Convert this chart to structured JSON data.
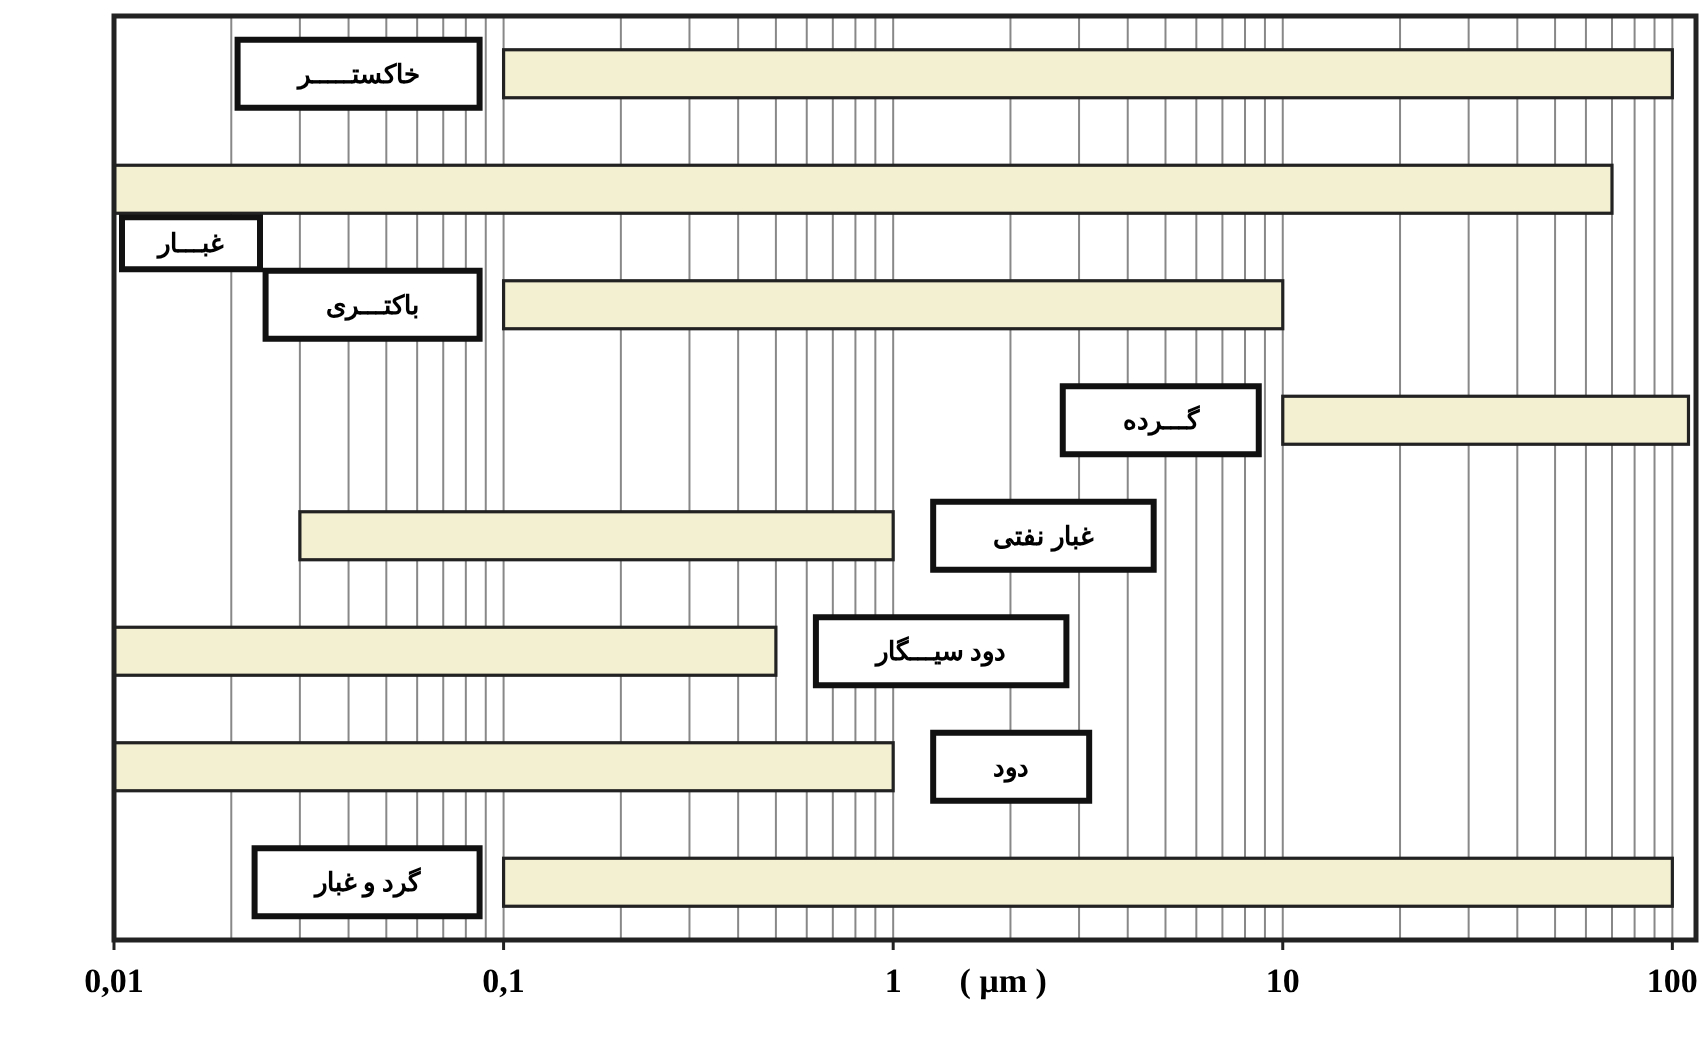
{
  "chart_data": {
    "type": "bar",
    "orientation": "horizontal",
    "log": "x",
    "categories": [
      "خاکستـــــر",
      "غبـــار",
      "باکتـــری",
      "گـــرده",
      "غبار نفتی",
      "دود سیـــگار",
      "دود",
      "گرد و غبار"
    ],
    "base": [
      0.1,
      0.01,
      0.1,
      10,
      0.03,
      0.01,
      0.01,
      0.1
    ],
    "values": [
      99.9,
      69.99,
      9.9,
      100,
      0.97,
      0.49,
      0.99,
      99.9
    ],
    "color": "#f3f0d2",
    "xlabel": "( µm )",
    "xlim": [
      0.01,
      115
    ],
    "xticks": [
      {
        "value": 0.01,
        "label": "0,01"
      },
      {
        "value": 0.1,
        "label": "0,1"
      },
      1,
      10,
      100
    ],
    "grid": "x"
  }
}
